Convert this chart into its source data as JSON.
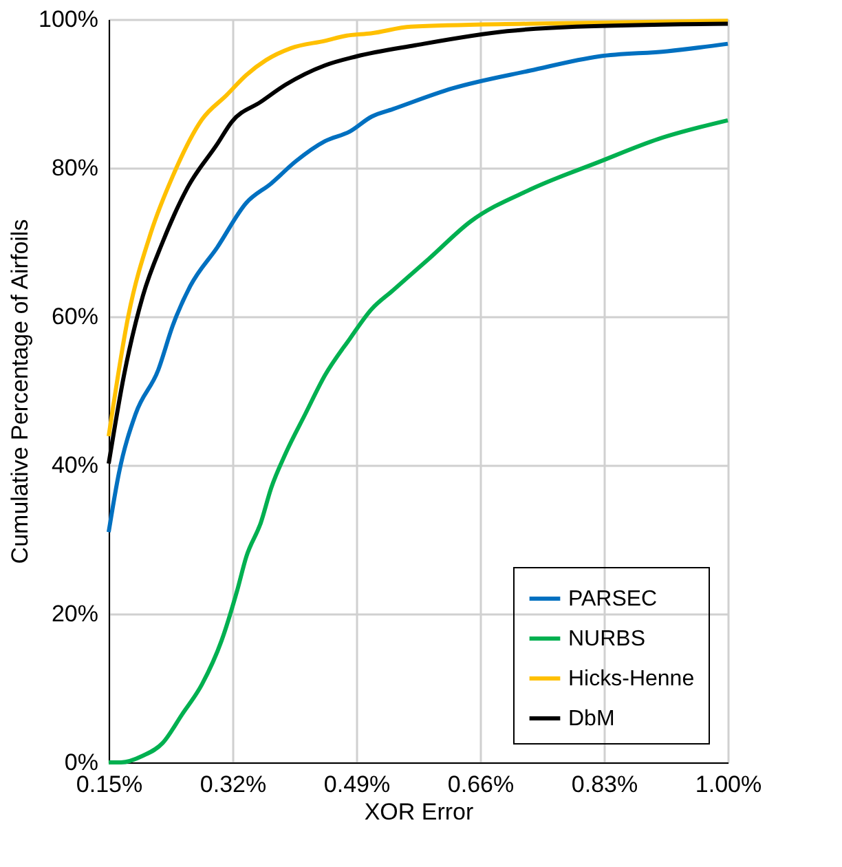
{
  "chart_data": {
    "type": "line",
    "xlabel": "XOR Error",
    "ylabel": "Cumulative  Percentage of Airfoils",
    "xlim": [
      0.15,
      1.0
    ],
    "xticks": [
      {
        "value": 0.15,
        "label": "0.15%"
      },
      {
        "value": 0.32,
        "label": "0.32%"
      },
      {
        "value": 0.49,
        "label": "0.49%"
      },
      {
        "value": 0.66,
        "label": "0.66%"
      },
      {
        "value": 0.83,
        "label": "0.83%"
      },
      {
        "value": 1.0,
        "label": "1.00%"
      }
    ],
    "ylim": [
      0,
      100
    ],
    "yticks": [
      {
        "value": 0,
        "label": "0%"
      },
      {
        "value": 20,
        "label": "20%"
      },
      {
        "value": 40,
        "label": "40%"
      },
      {
        "value": 60,
        "label": "60%"
      },
      {
        "value": 80,
        "label": "80%"
      },
      {
        "value": 100,
        "label": "100%"
      }
    ],
    "grid": true,
    "legend": "bottom right",
    "marker": "none",
    "line_style": "solid",
    "series": [
      {
        "name": "PARSEC",
        "color": "#0070c0",
        "x": [
          0.15,
          0.164,
          0.187,
          0.218,
          0.238,
          0.262,
          0.299,
          0.339,
          0.373,
          0.407,
          0.447,
          0.481,
          0.511,
          0.54,
          0.622,
          0.729,
          0.823,
          0.917,
          1.0
        ],
        "values": [
          31.0,
          38.9,
          46.9,
          52.8,
          58.8,
          64.1,
          69.3,
          75.3,
          77.9,
          80.9,
          83.6,
          84.9,
          86.9,
          87.9,
          90.7,
          93.1,
          95.0,
          95.7,
          96.7
        ]
      },
      {
        "name": "NURBS",
        "color": "#00b050",
        "x": [
          0.15,
          0.167,
          0.197,
          0.224,
          0.251,
          0.278,
          0.305,
          0.326,
          0.339,
          0.359,
          0.373,
          0.393,
          0.42,
          0.447,
          0.481,
          0.511,
          0.54,
          0.59,
          0.647,
          0.729,
          0.823,
          0.905,
          1.0
        ],
        "values": [
          0,
          0,
          0.9,
          2.6,
          6.5,
          10.5,
          16.4,
          23.0,
          27.7,
          32.3,
          36.9,
          41.6,
          46.9,
          52.1,
          57.0,
          61.0,
          63.5,
          67.8,
          72.8,
          77.1,
          80.8,
          83.9,
          86.4
        ]
      },
      {
        "name": "Hicks-Henne",
        "color": "#ffc000",
        "x": [
          0.15,
          0.177,
          0.208,
          0.238,
          0.278,
          0.312,
          0.339,
          0.366,
          0.4,
          0.447,
          0.477,
          0.51,
          0.565,
          0.728,
          1.0
        ],
        "values": [
          43.9,
          60.1,
          71.3,
          78.9,
          86.5,
          89.8,
          92.5,
          94.5,
          96.1,
          97.1,
          97.8,
          98.1,
          99.0,
          99.4,
          99.8
        ]
      },
      {
        "name": "DbM",
        "color": "#000000",
        "x": [
          0.15,
          0.171,
          0.197,
          0.224,
          0.258,
          0.299,
          0.319,
          0.359,
          0.393,
          0.447,
          0.49,
          0.571,
          0.697,
          0.792,
          1.0
        ],
        "values": [
          40.2,
          52.1,
          62.8,
          70.0,
          77.3,
          83.2,
          86.2,
          88.9,
          91.2,
          93.8,
          95.0,
          96.5,
          98.4,
          99.0,
          99.4
        ]
      }
    ]
  }
}
